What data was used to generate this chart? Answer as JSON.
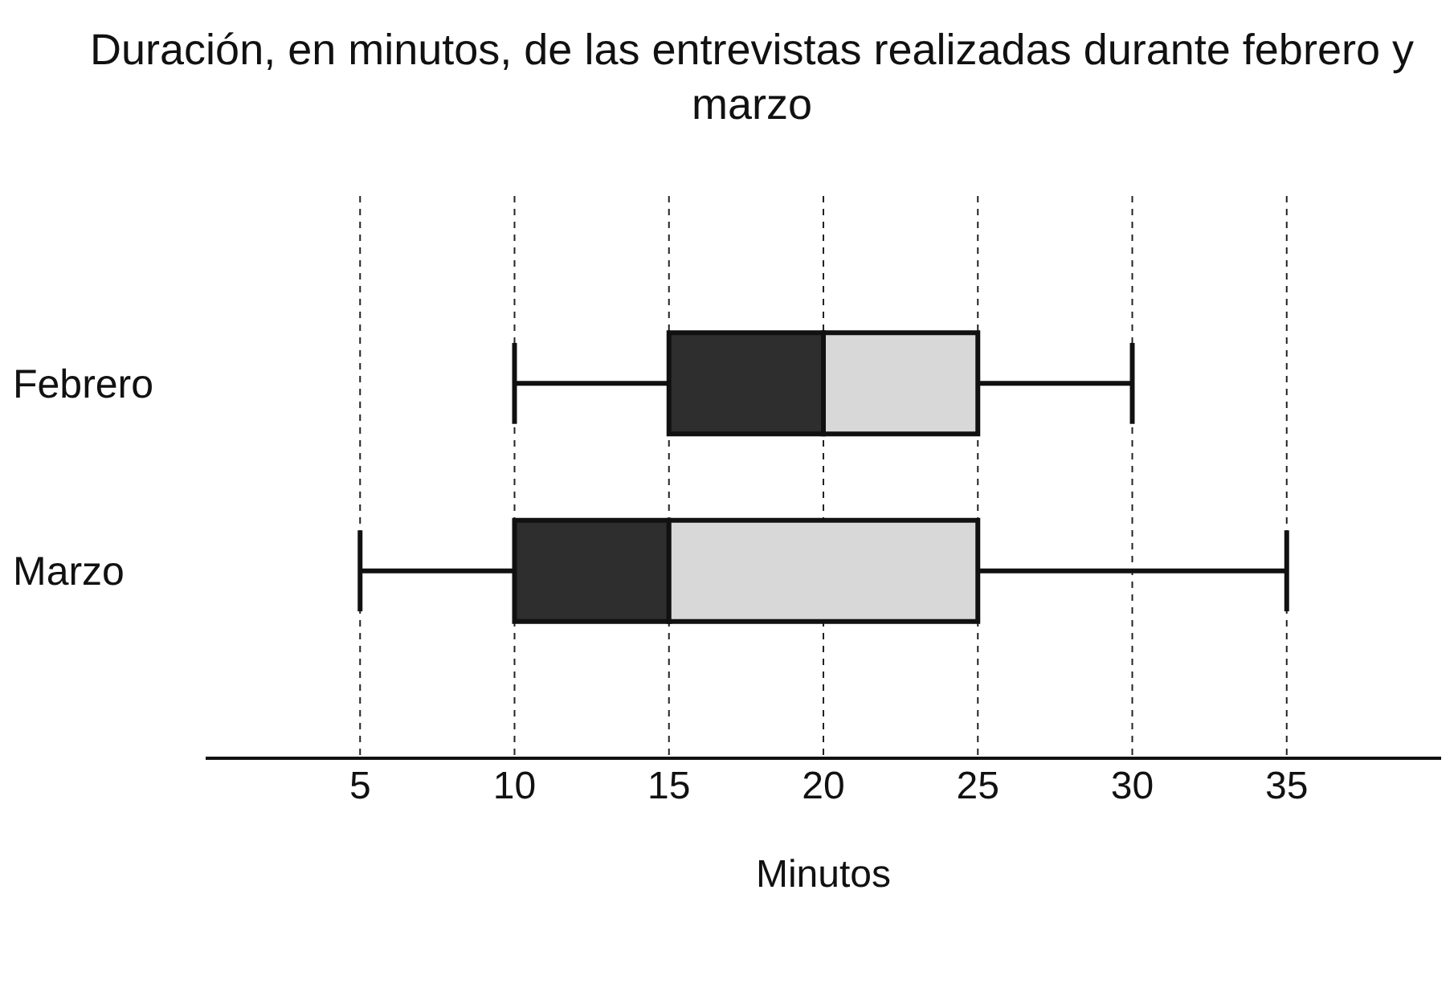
{
  "chart_data": {
    "type": "box",
    "orientation": "horizontal",
    "title": "Duración, en minutos, de las entrevistas realizadas durante febrero y marzo",
    "xlabel": "Minutos",
    "categories": [
      "Febrero",
      "Marzo"
    ],
    "series": [
      {
        "color": "#2e2e2e",
        "boxes": [
          {
            "low": 10,
            "q1": 15,
            "median": 20,
            "q3": 25,
            "high": 30
          },
          {
            "low": 5,
            "q1": 10,
            "median": 15,
            "q3": 25,
            "high": 35
          }
        ]
      }
    ],
    "xlim": [
      0,
      40
    ],
    "xticks": [
      5,
      10,
      15,
      20,
      25,
      30,
      35
    ],
    "grid": "x",
    "line_style": "dashed"
  }
}
